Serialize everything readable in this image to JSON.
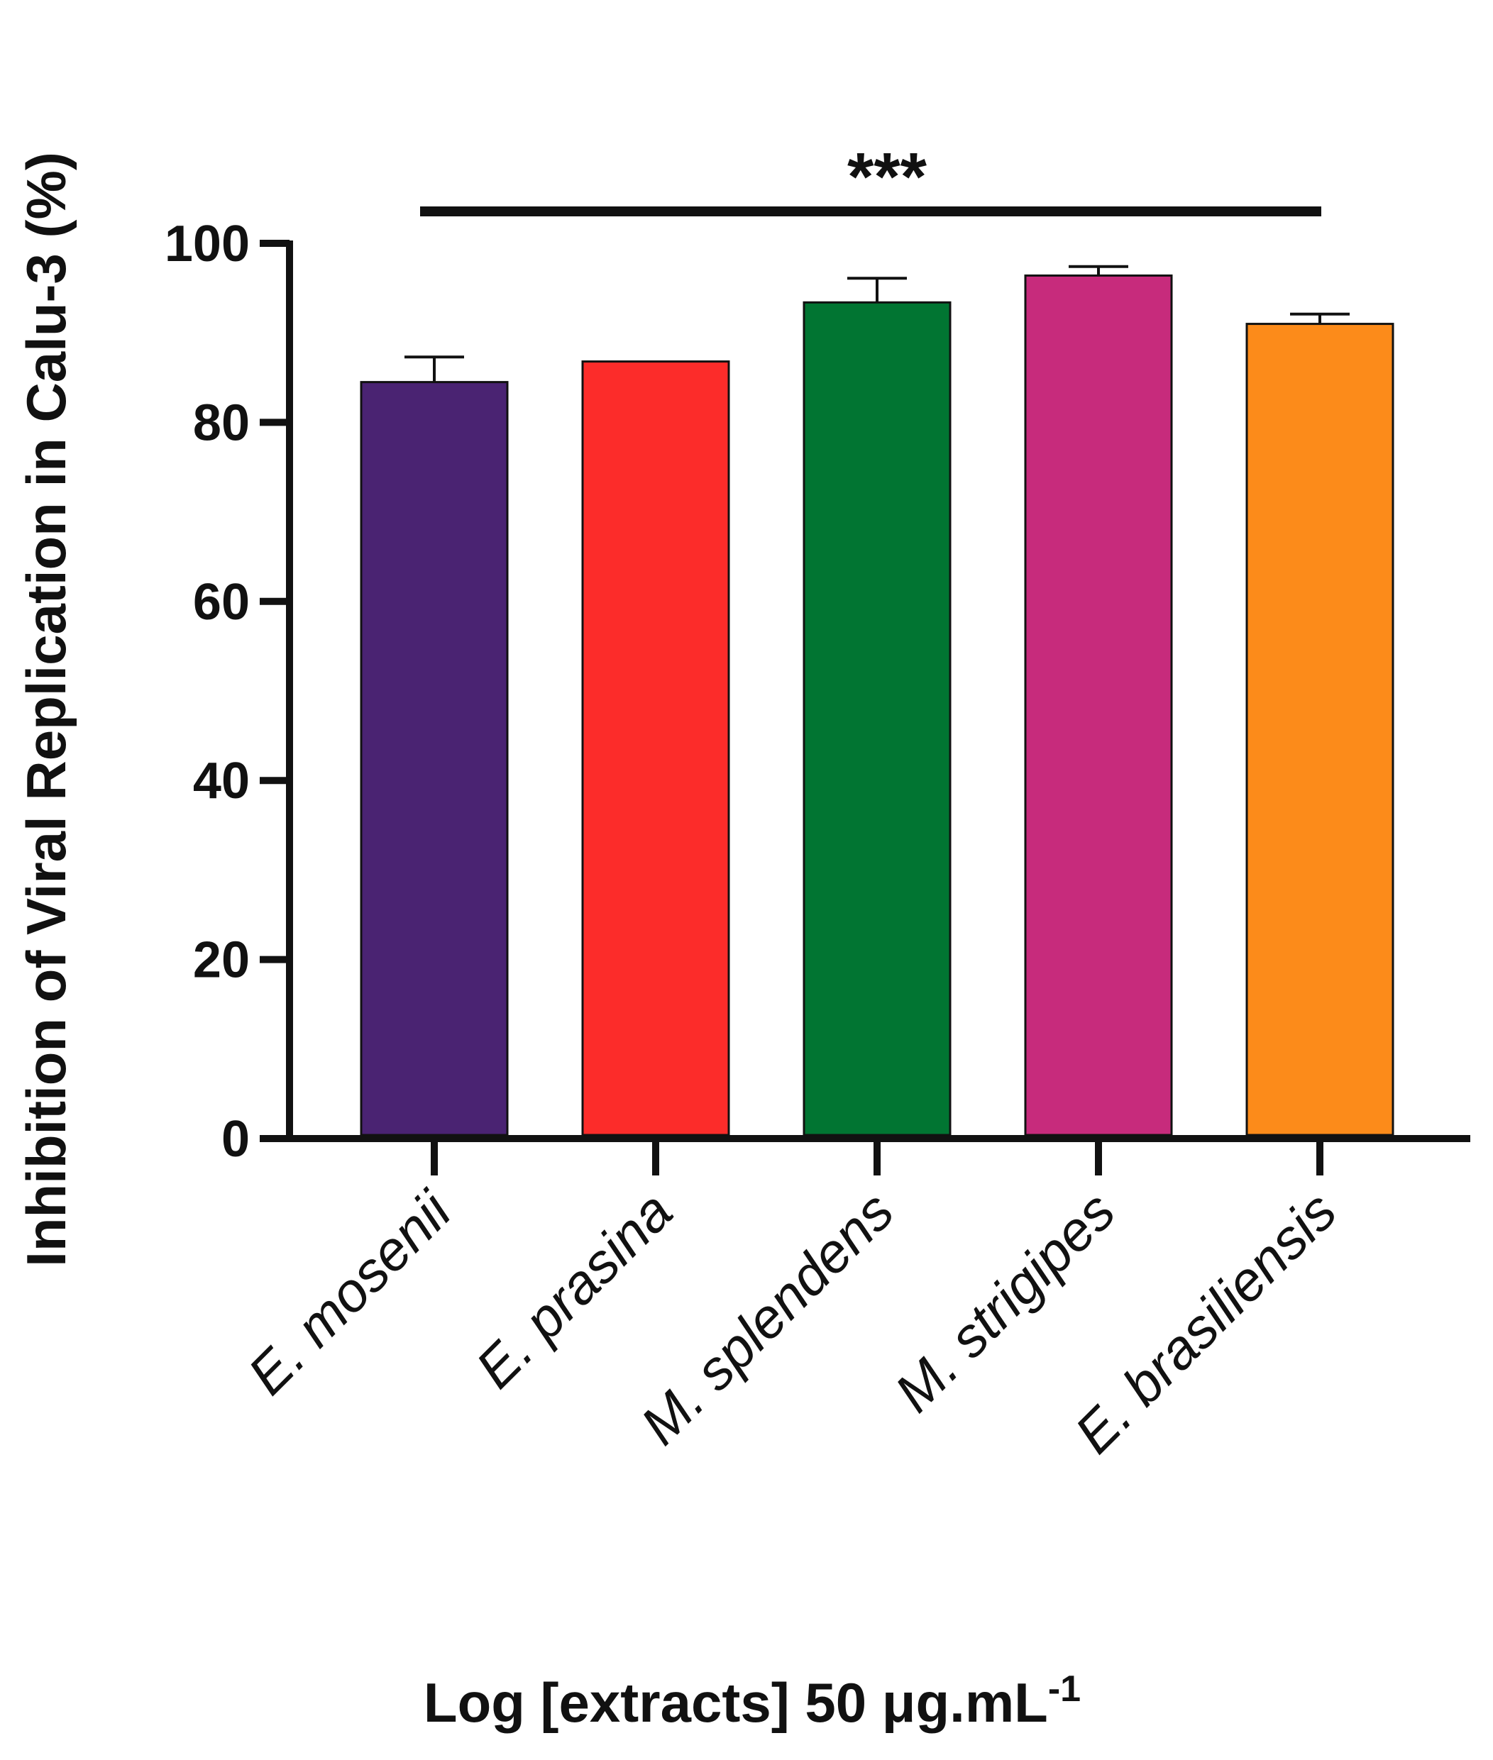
{
  "chart_data": {
    "type": "bar",
    "ylabel": "Inhibition of Viral Replication in Calu-3 (%)",
    "xlabel": {
      "prefix": "Log [extracts] 50 μg.mL",
      "superscript": "-1"
    },
    "ylim": [
      0,
      100
    ],
    "yticks": [
      "0",
      "20",
      "40",
      "60",
      "80",
      "100"
    ],
    "categories": [
      "E. mosenii",
      "E. prasina",
      "M. splendens",
      "M. strigipes",
      "E. brasiliensis"
    ],
    "values": [
      84.5,
      86.8,
      93.4,
      96.4,
      91.0
    ],
    "errors": [
      2.8,
      0,
      2.7,
      1.0,
      1.1
    ],
    "colors": [
      "#4a2372",
      "#fc2c2a",
      "#017532",
      "#c72b7c",
      "#fc8b1a"
    ],
    "significance": {
      "label": "***",
      "from_category": 0,
      "to_category": 4
    }
  }
}
